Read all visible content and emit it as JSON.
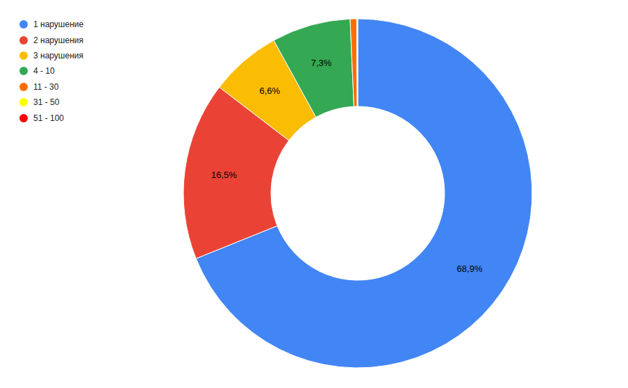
{
  "chart_data": {
    "type": "donut",
    "categories": [
      "1 нарушение",
      "2 нарушения",
      "3 нарушения",
      "4 - 10",
      "11 - 30",
      "31 - 50",
      "51 - 100"
    ],
    "values": [
      68.9,
      16.5,
      6.6,
      7.3,
      0.6,
      0.05,
      0.05
    ],
    "value_labels": [
      "68,9%",
      "16,5%",
      "6,6%",
      "7,3%",
      null,
      null,
      null
    ],
    "colors": [
      "#4285f4",
      "#ea4335",
      "#fbbc04",
      "#34a853",
      "#ff6d01",
      "#ffff00",
      "#ff0000"
    ],
    "data_labels": true,
    "legend": "left"
  }
}
